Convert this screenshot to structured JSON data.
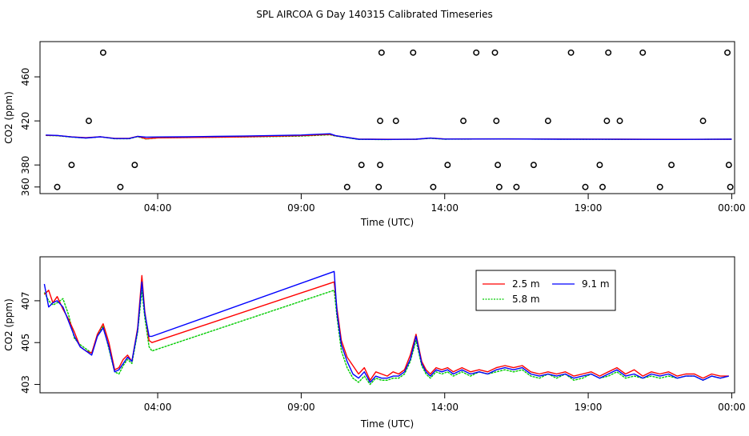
{
  "title": "SPL AIRCOA G  Day 140315  Calibrated Timeseries",
  "colors": {
    "2.5 m": "#ff0000",
    "5.8 m": "#00cc00",
    "9.1 m": "#0000ff"
  },
  "chart_data": [
    {
      "type": "line",
      "panel": "top",
      "xlabel": "Time (UTC)",
      "ylabel": "CO2 (ppm)",
      "xlim": [
        -0.1,
        24.1
      ],
      "ylim": [
        354,
        492
      ],
      "x_ticks": [
        {
          "x": 4,
          "label": "04:00"
        },
        {
          "x": 9,
          "label": "09:00"
        },
        {
          "x": 14,
          "label": "14:00"
        },
        {
          "x": 19,
          "label": "19:00"
        },
        {
          "x": 24,
          "label": "00:00"
        }
      ],
      "y_ticks": [
        {
          "y": 360,
          "label": "360"
        },
        {
          "y": 380,
          "label": "380"
        },
        {
          "y": 420,
          "label": "420"
        },
        {
          "y": 460,
          "label": "460"
        }
      ],
      "series": [
        {
          "name": "2.5 m",
          "x": [
            0.1,
            0.5,
            1.0,
            1.5,
            2.0,
            2.5,
            3.0,
            3.3,
            3.6,
            4.0,
            5.0,
            6.0,
            7.0,
            8.0,
            9.0,
            10.0,
            10.2,
            11.0,
            12.0,
            13.0,
            13.5,
            14.0,
            16.0,
            18.0,
            20.0,
            22.0,
            24.0
          ],
          "y": [
            406.9,
            406.7,
            405.5,
            404.8,
            405.6,
            404.2,
            404.2,
            406.0,
            403.8,
            404.6,
            404.9,
            405.2,
            405.6,
            406.1,
            406.6,
            407.8,
            406.5,
            403.5,
            403.3,
            403.4,
            404.4,
            403.6,
            403.7,
            403.5,
            403.4,
            403.3,
            403.4
          ]
        },
        {
          "name": "5.8 m",
          "x": [
            0.1,
            0.5,
            1.0,
            1.5,
            2.0,
            2.5,
            3.0,
            3.3,
            3.6,
            4.0,
            5.0,
            6.0,
            7.0,
            8.0,
            9.0,
            10.0,
            10.2,
            11.0,
            12.0,
            13.0,
            13.5,
            14.0,
            16.0,
            18.0,
            20.0,
            22.0,
            24.0
          ],
          "y": [
            406.8,
            406.5,
            405.3,
            404.5,
            405.5,
            403.8,
            403.8,
            405.7,
            403.5,
            404.6,
            404.9,
            405.2,
            405.4,
            405.8,
            406.2,
            407.4,
            406.3,
            403.2,
            403.1,
            403.3,
            404.2,
            403.4,
            403.6,
            403.4,
            403.2,
            403.2,
            403.4
          ]
        },
        {
          "name": "9.1 m",
          "x": [
            0.1,
            0.5,
            1.0,
            1.5,
            2.0,
            2.5,
            3.0,
            3.3,
            3.6,
            4.0,
            5.0,
            6.0,
            7.0,
            8.0,
            9.0,
            10.0,
            10.2,
            11.0,
            12.0,
            13.0,
            13.5,
            14.0,
            16.0,
            18.0,
            20.0,
            22.0,
            24.0
          ],
          "y": [
            407.2,
            406.8,
            405.4,
            404.5,
            405.6,
            404.0,
            404.0,
            405.9,
            405.3,
            405.4,
            405.6,
            405.9,
            406.2,
            406.7,
            407.2,
            408.3,
            406.6,
            403.4,
            403.2,
            403.4,
            404.4,
            403.5,
            403.6,
            403.4,
            403.3,
            403.2,
            403.4
          ]
        }
      ],
      "markers": {
        "shape": "open-circle",
        "x": [
          0.5,
          1.0,
          1.6,
          2.1,
          2.7,
          3.2,
          10.6,
          11.1,
          11.7,
          11.75,
          11.75,
          11.8,
          12.3,
          12.9,
          13.6,
          14.1,
          14.65,
          15.1,
          15.75,
          15.8,
          15.85,
          15.9,
          16.5,
          17.1,
          17.6,
          18.4,
          18.9,
          19.4,
          19.5,
          19.65,
          19.7,
          20.1,
          20.9,
          21.5,
          21.9,
          23.0,
          23.85,
          23.9,
          23.95
        ]
      }
    },
    {
      "type": "line",
      "panel": "bottom",
      "xlabel": "Time (UTC)",
      "ylabel": "CO2 (ppm)",
      "xlim": [
        -0.1,
        24.1
      ],
      "ylim": [
        402.6,
        409.1
      ],
      "x_ticks": [
        {
          "x": 4,
          "label": "04:00"
        },
        {
          "x": 9,
          "label": "09:00"
        },
        {
          "x": 14,
          "label": "14:00"
        },
        {
          "x": 19,
          "label": "19:00"
        },
        {
          "x": 24,
          "label": "00:00"
        }
      ],
      "y_ticks": [
        {
          "y": 403,
          "label": "403"
        },
        {
          "y": 405,
          "label": "405"
        },
        {
          "y": 407,
          "label": "407"
        }
      ],
      "legend": {
        "placement": "top-right",
        "entries": [
          "2.5 m",
          "9.1 m",
          "5.8 m"
        ]
      },
      "series": [
        {
          "name": "2.5 m",
          "x": [
            0.05,
            0.2,
            0.35,
            0.5,
            0.7,
            0.9,
            1.1,
            1.3,
            1.5,
            1.7,
            1.9,
            2.1,
            2.3,
            2.5,
            2.65,
            2.8,
            2.95,
            3.1,
            3.3,
            3.45,
            3.55,
            3.7,
            3.8,
            10.15,
            10.25,
            10.4,
            10.6,
            10.8,
            11.0,
            11.2,
            11.4,
            11.6,
            11.8,
            12.0,
            12.2,
            12.4,
            12.6,
            12.8,
            13.0,
            13.2,
            13.35,
            13.5,
            13.7,
            13.9,
            14.1,
            14.3,
            14.6,
            14.9,
            15.2,
            15.5,
            15.8,
            16.1,
            16.4,
            16.7,
            17.0,
            17.3,
            17.6,
            17.9,
            18.2,
            18.5,
            18.8,
            19.1,
            19.4,
            19.7,
            20.0,
            20.3,
            20.6,
            20.9,
            21.2,
            21.5,
            21.8,
            22.1,
            22.4,
            22.7,
            23.0,
            23.3,
            23.6,
            23.9
          ],
          "y": [
            407.3,
            407.5,
            406.9,
            407.2,
            406.6,
            406.1,
            405.5,
            404.8,
            404.6,
            404.5,
            405.4,
            405.9,
            405.0,
            403.7,
            403.8,
            404.2,
            404.4,
            404.1,
            405.7,
            408.2,
            406.5,
            405.1,
            405.0,
            407.9,
            406.6,
            405.1,
            404.3,
            403.9,
            403.5,
            403.8,
            403.2,
            403.6,
            403.5,
            403.4,
            403.6,
            403.5,
            403.7,
            404.4,
            405.4,
            404.1,
            403.7,
            403.5,
            403.8,
            403.7,
            403.8,
            403.6,
            403.8,
            403.6,
            403.7,
            403.6,
            403.8,
            403.9,
            403.8,
            403.9,
            403.6,
            403.5,
            403.6,
            403.5,
            403.6,
            403.4,
            403.5,
            403.6,
            403.4,
            403.6,
            403.8,
            403.5,
            403.7,
            403.4,
            403.6,
            403.5,
            403.6,
            403.4,
            403.5,
            403.5,
            403.3,
            403.5,
            403.4,
            403.4
          ]
        },
        {
          "name": "5.8 m",
          "x": [
            0.05,
            0.2,
            0.35,
            0.5,
            0.7,
            0.9,
            1.1,
            1.3,
            1.5,
            1.7,
            1.9,
            2.1,
            2.3,
            2.5,
            2.65,
            2.8,
            2.95,
            3.1,
            3.3,
            3.45,
            3.55,
            3.7,
            3.8,
            10.15,
            10.25,
            10.4,
            10.6,
            10.8,
            11.0,
            11.2,
            11.4,
            11.6,
            11.8,
            12.0,
            12.2,
            12.4,
            12.6,
            12.8,
            13.0,
            13.2,
            13.35,
            13.5,
            13.7,
            13.9,
            14.1,
            14.3,
            14.6,
            14.9,
            15.2,
            15.5,
            15.8,
            16.1,
            16.4,
            16.7,
            17.0,
            17.3,
            17.6,
            17.9,
            18.2,
            18.5,
            18.8,
            19.1,
            19.4,
            19.7,
            20.0,
            20.3,
            20.6,
            20.9,
            21.2,
            21.5,
            21.8,
            22.1,
            22.4,
            22.7,
            23.0,
            23.3,
            23.6,
            23.9
          ],
          "y": [
            407.4,
            407.0,
            406.8,
            406.9,
            407.1,
            406.3,
            405.2,
            404.9,
            404.7,
            404.5,
            405.3,
            405.8,
            404.7,
            403.6,
            403.5,
            403.9,
            404.2,
            404.0,
            405.5,
            407.5,
            406.2,
            404.8,
            404.6,
            407.5,
            406.2,
            404.6,
            403.8,
            403.3,
            403.1,
            403.4,
            403.0,
            403.3,
            403.2,
            403.2,
            403.3,
            403.3,
            403.5,
            404.1,
            405.1,
            403.9,
            403.5,
            403.3,
            403.6,
            403.5,
            403.6,
            403.4,
            403.6,
            403.4,
            403.6,
            403.5,
            403.6,
            403.7,
            403.6,
            403.7,
            403.4,
            403.3,
            403.5,
            403.3,
            403.5,
            403.2,
            403.3,
            403.5,
            403.3,
            403.4,
            403.6,
            403.3,
            403.4,
            403.3,
            403.4,
            403.3,
            403.4,
            403.3,
            403.4,
            403.4,
            403.2,
            403.4,
            403.3,
            403.4
          ]
        },
        {
          "name": "9.1 m",
          "x": [
            0.05,
            0.2,
            0.35,
            0.5,
            0.7,
            0.9,
            1.1,
            1.3,
            1.5,
            1.7,
            1.9,
            2.1,
            2.3,
            2.5,
            2.65,
            2.8,
            2.95,
            3.1,
            3.3,
            3.45,
            3.55,
            3.7,
            3.8,
            10.15,
            10.25,
            10.4,
            10.6,
            10.8,
            11.0,
            11.2,
            11.4,
            11.6,
            11.8,
            12.0,
            12.2,
            12.4,
            12.6,
            12.8,
            13.0,
            13.2,
            13.35,
            13.5,
            13.7,
            13.9,
            14.1,
            14.3,
            14.6,
            14.9,
            15.2,
            15.5,
            15.8,
            16.1,
            16.4,
            16.7,
            17.0,
            17.3,
            17.6,
            17.9,
            18.2,
            18.5,
            18.8,
            19.1,
            19.4,
            19.7,
            20.0,
            20.3,
            20.6,
            20.9,
            21.2,
            21.5,
            21.8,
            22.1,
            22.4,
            22.7,
            23.0,
            23.3,
            23.6,
            23.9
          ],
          "y": [
            407.8,
            406.7,
            406.9,
            407.0,
            406.7,
            406.0,
            405.3,
            404.8,
            404.6,
            404.4,
            405.3,
            405.7,
            404.8,
            403.6,
            403.7,
            404.0,
            404.3,
            404.1,
            405.6,
            407.9,
            406.4,
            405.3,
            405.3,
            408.4,
            406.4,
            404.9,
            404.1,
            403.5,
            403.3,
            403.6,
            403.1,
            403.4,
            403.3,
            403.3,
            403.4,
            403.4,
            403.6,
            404.2,
            405.3,
            404.0,
            403.6,
            403.4,
            403.7,
            403.6,
            403.7,
            403.5,
            403.7,
            403.5,
            403.6,
            403.5,
            403.7,
            403.8,
            403.7,
            403.8,
            403.5,
            403.4,
            403.5,
            403.4,
            403.5,
            403.3,
            403.4,
            403.5,
            403.3,
            403.5,
            403.7,
            403.4,
            403.5,
            403.3,
            403.5,
            403.4,
            403.5,
            403.3,
            403.4,
            403.4,
            403.2,
            403.4,
            403.3,
            403.4
          ]
        }
      ]
    }
  ]
}
